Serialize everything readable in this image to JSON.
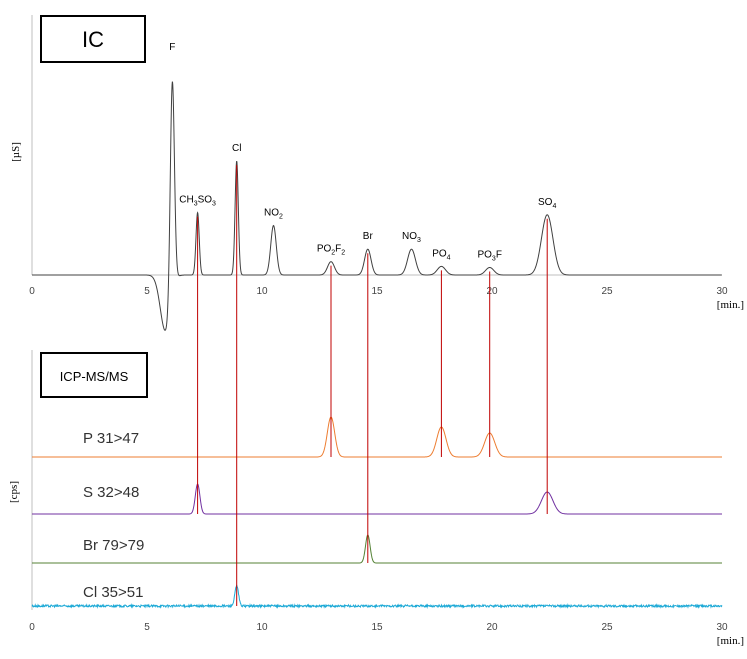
{
  "chart_data": [
    {
      "type": "line",
      "title": "IC",
      "ylabel": "[µS]",
      "xlabel": "[min.]",
      "xlim": [
        0,
        30
      ],
      "xticks": [
        "0",
        "5",
        "10",
        "15",
        "20",
        "25",
        "30"
      ],
      "baseline": 0,
      "negative_dip": {
        "x": 5.8,
        "y": -0.26,
        "width": 0.22
      },
      "peaks": [
        {
          "label": "F",
          "x": 6.1,
          "height": 1.0,
          "width": 0.09
        },
        {
          "label": "CH3SO3",
          "x": 7.2,
          "height": 0.29,
          "width": 0.07
        },
        {
          "label": "Cl",
          "x": 8.9,
          "height": 0.53,
          "width": 0.07
        },
        {
          "label": "NO2",
          "x": 10.5,
          "height": 0.23,
          "width": 0.12
        },
        {
          "label": "PO2F2",
          "x": 13.0,
          "height": 0.062,
          "width": 0.15
        },
        {
          "label": "Br",
          "x": 14.6,
          "height": 0.12,
          "width": 0.14
        },
        {
          "label": "NO3",
          "x": 16.5,
          "height": 0.12,
          "width": 0.17
        },
        {
          "label": "PO4",
          "x": 17.8,
          "height": 0.04,
          "width": 0.18
        },
        {
          "label": "PO3F",
          "x": 19.9,
          "height": 0.035,
          "width": 0.18
        },
        {
          "label": "SO4",
          "x": 22.4,
          "height": 0.28,
          "width": 0.25
        }
      ],
      "peak_labels": [
        {
          "main": "F",
          "sub": "",
          "tail": ""
        },
        {
          "main": "CH",
          "sub": "3",
          "main2": "SO",
          "sub2": "3"
        },
        {
          "main": "Cl",
          "sub": "",
          "tail": ""
        },
        {
          "main": "NO",
          "sub": "2",
          "tail": ""
        },
        {
          "main": "PO",
          "sub": "2",
          "main2": "F",
          "sub2": "2"
        },
        {
          "main": "Br",
          "sub": "",
          "tail": ""
        },
        {
          "main": "NO",
          "sub": "3",
          "tail": ""
        },
        {
          "main": "PO",
          "sub": "4",
          "tail": ""
        },
        {
          "main": "PO",
          "sub": "3",
          "tail": "F"
        },
        {
          "main": "SO",
          "sub": "4",
          "tail": ""
        }
      ]
    },
    {
      "type": "line",
      "title": "ICP-MS/MS",
      "ylabel": "[cps]",
      "xlabel": "[min.]",
      "xlim": [
        0,
        30
      ],
      "xticks": [
        "0",
        "5",
        "10",
        "15",
        "20",
        "25",
        "30"
      ],
      "series": [
        {
          "name": "P 31>47",
          "color": "#ED7D31",
          "peaks": [
            {
              "x": 13.0,
              "h": 40,
              "w": 0.16
            },
            {
              "x": 17.8,
              "h": 30,
              "w": 0.2
            },
            {
              "x": 19.9,
              "h": 24,
              "w": 0.22
            }
          ]
        },
        {
          "name": "S 32>48",
          "color": "#7030A0",
          "peaks": [
            {
              "x": 7.2,
              "h": 30,
              "w": 0.1
            },
            {
              "x": 22.4,
              "h": 22,
              "w": 0.25
            }
          ]
        },
        {
          "name": "Br 79>79",
          "color": "#548235",
          "peaks": [
            {
              "x": 14.6,
              "h": 28,
              "w": 0.1
            }
          ]
        },
        {
          "name": "Cl 35>51",
          "color": "#1CA9D6",
          "peaks": [
            {
              "x": 8.9,
              "h": 20,
              "w": 0.08
            }
          ]
        }
      ]
    }
  ],
  "markers": {
    "color": "#C00000",
    "x": [
      7.2,
      8.9,
      13.0,
      14.6,
      17.8,
      19.9,
      22.4
    ]
  }
}
